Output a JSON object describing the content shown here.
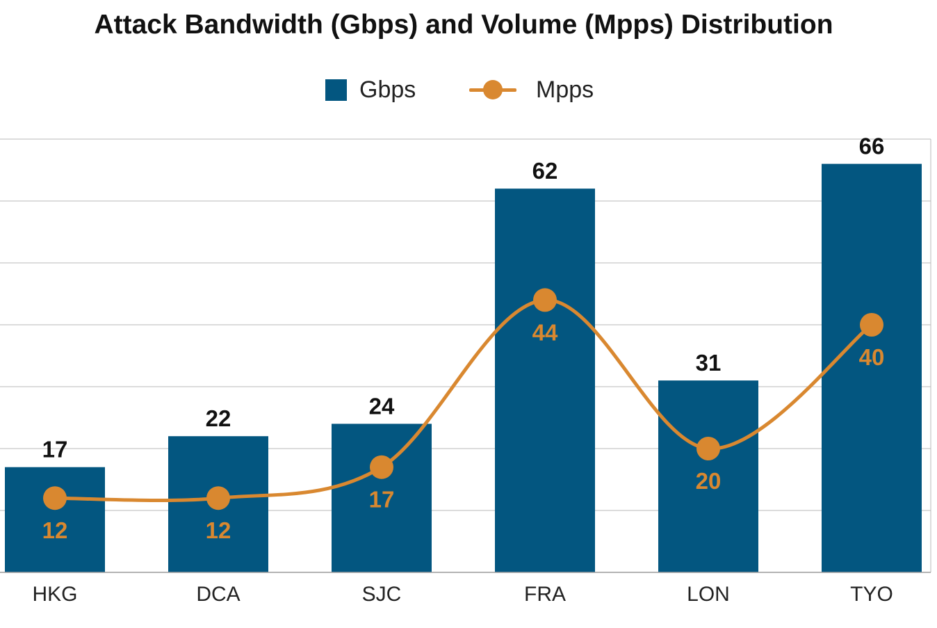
{
  "chart_data": {
    "type": "bar",
    "title": "Attack Bandwidth (Gbps) and Volume (Mpps) Distribution",
    "categories": [
      "HKG",
      "DCA",
      "SJC",
      "FRA",
      "LON",
      "TYO"
    ],
    "series": [
      {
        "name": "Gbps",
        "type": "bar",
        "values": [
          17,
          22,
          24,
          62,
          31,
          66
        ],
        "color": "#035680"
      },
      {
        "name": "Mpps",
        "type": "line",
        "smooth": true,
        "values": [
          12,
          12,
          17,
          44,
          20,
          40
        ],
        "color": "#D98830"
      }
    ],
    "ylim": [
      0,
      70
    ],
    "grid": true,
    "legend": "top-center",
    "xlabel": "",
    "ylabel": ""
  }
}
